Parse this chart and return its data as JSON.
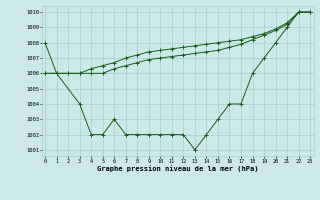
{
  "line1_x": [
    0,
    1,
    3,
    4,
    5,
    6,
    7,
    8,
    9,
    10,
    11,
    12,
    13,
    14,
    15,
    16,
    17,
    18,
    19,
    20,
    21,
    22,
    23
  ],
  "line1_y": [
    1008,
    1006,
    1004,
    1002,
    1002,
    1003,
    1002,
    1002,
    1002,
    1002,
    1002,
    1002,
    1001,
    1002,
    1003,
    1004,
    1004,
    1006,
    1007,
    1008,
    1009,
    1010,
    1010
  ],
  "line2_x": [
    0,
    1,
    2,
    3,
    4,
    5,
    6,
    7,
    8,
    9,
    10,
    11,
    12,
    13,
    14,
    15,
    16,
    17,
    18,
    19,
    20,
    21,
    22,
    23
  ],
  "line2_y": [
    1006,
    1006,
    1006,
    1006,
    1006,
    1006,
    1006.3,
    1006.5,
    1006.7,
    1006.9,
    1007.0,
    1007.1,
    1007.2,
    1007.3,
    1007.4,
    1007.5,
    1007.7,
    1007.9,
    1008.2,
    1008.5,
    1008.8,
    1009.2,
    1010,
    1010
  ],
  "line3_x": [
    0,
    2,
    3,
    4,
    5,
    6,
    7,
    8,
    9,
    10,
    11,
    12,
    13,
    14,
    15,
    16,
    17,
    18,
    19,
    20,
    21,
    22,
    23
  ],
  "line3_y": [
    1006,
    1006,
    1006,
    1006.3,
    1006.5,
    1006.7,
    1007.0,
    1007.2,
    1007.4,
    1007.5,
    1007.6,
    1007.7,
    1007.8,
    1007.9,
    1008.0,
    1008.1,
    1008.2,
    1008.4,
    1008.6,
    1008.9,
    1009.3,
    1010,
    1010
  ],
  "line_color": "#1a5c1a",
  "bg_color": "#cde8e8",
  "grid_color": "#aacece",
  "ylabel_ticks": [
    1001,
    1002,
    1003,
    1004,
    1005,
    1006,
    1007,
    1008,
    1009,
    1010
  ],
  "xlabel_ticks": [
    0,
    1,
    2,
    3,
    4,
    5,
    6,
    7,
    8,
    9,
    10,
    11,
    12,
    13,
    14,
    15,
    16,
    17,
    18,
    19,
    20,
    21,
    22,
    23
  ],
  "ylim": [
    1000.6,
    1010.4
  ],
  "xlim": [
    -0.3,
    23.3
  ],
  "xlabel": "Graphe pression niveau de la mer (hPa)",
  "marker": "+"
}
